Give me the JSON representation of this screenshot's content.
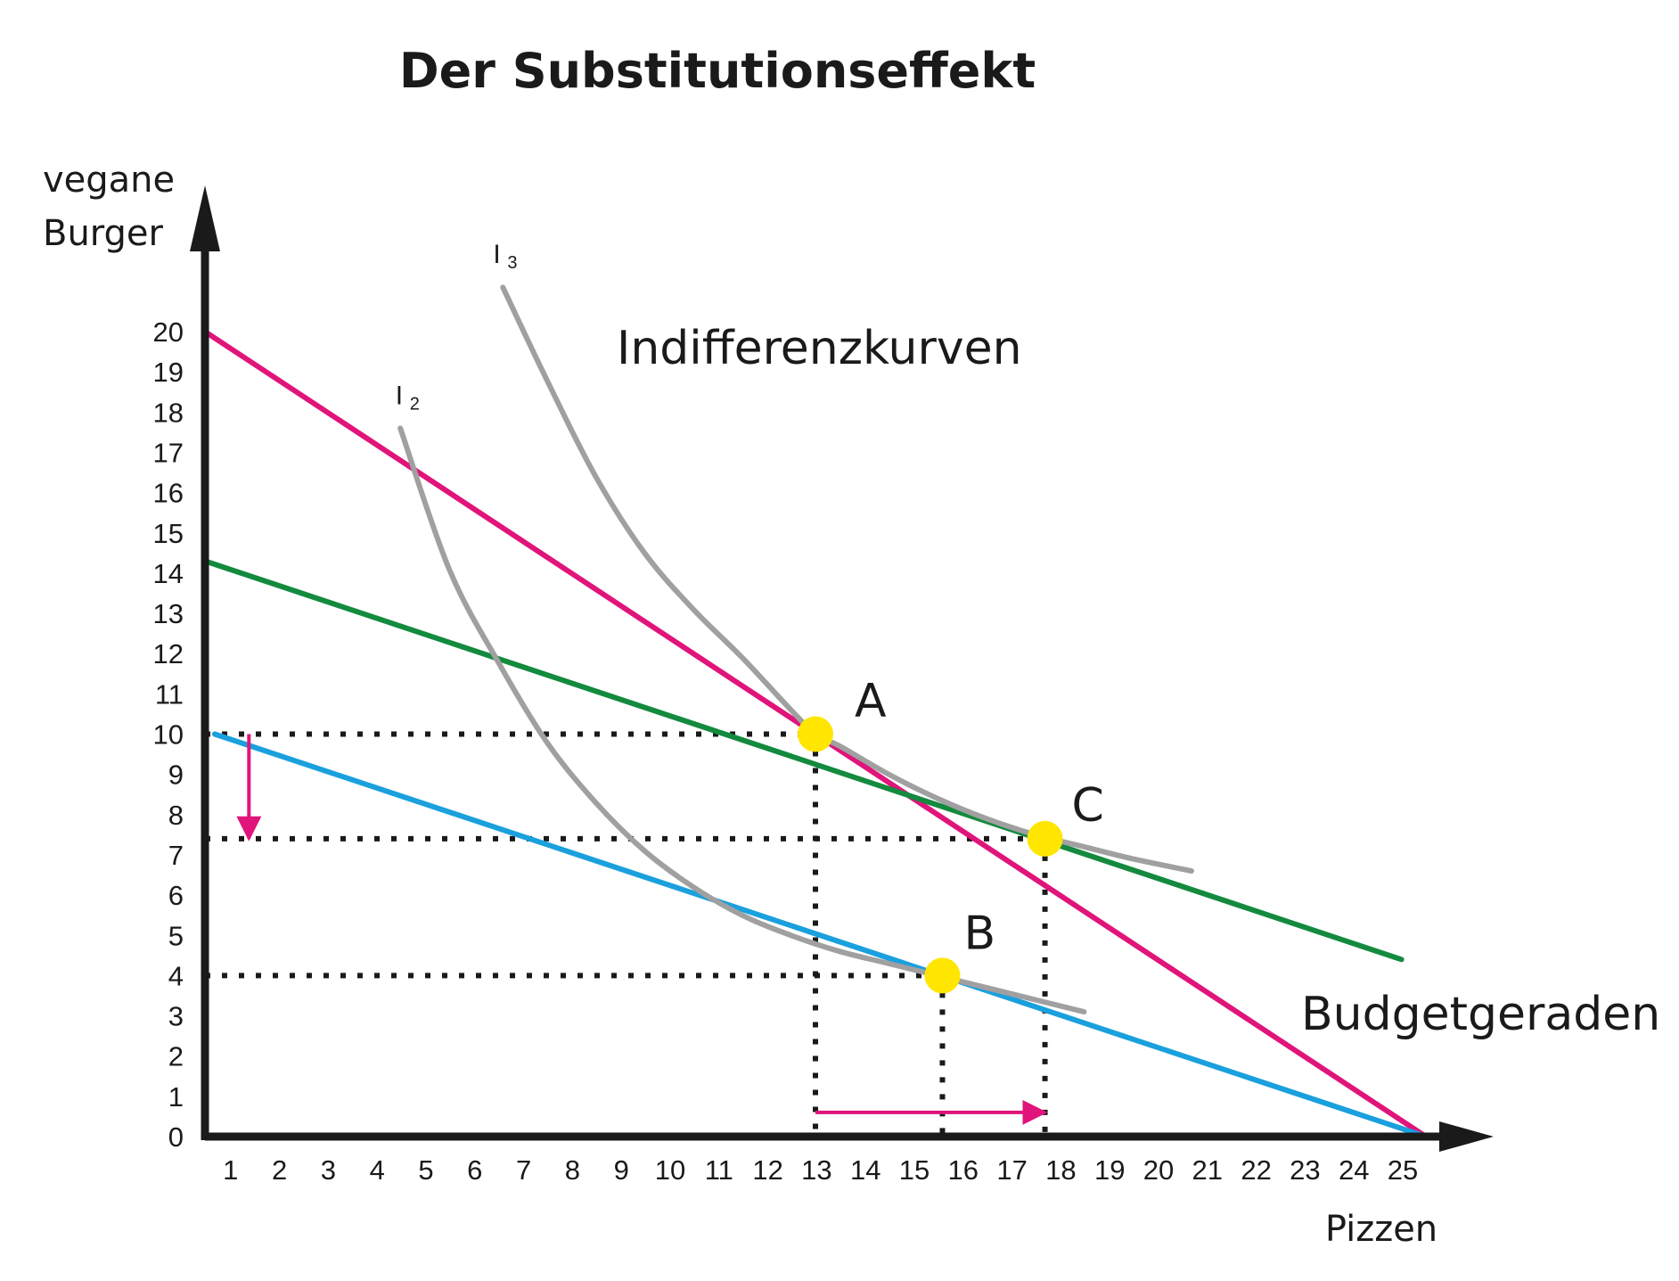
{
  "chart_data": {
    "type": "line",
    "title": "Der Substitutionseffekt",
    "ylabel": [
      "vegane",
      "Burger"
    ],
    "xlabel": "Pizzen",
    "xlim": [
      0,
      25
    ],
    "ylim": [
      0,
      20
    ],
    "x_ticks": [
      1,
      2,
      3,
      4,
      5,
      6,
      7,
      8,
      9,
      10,
      11,
      12,
      13,
      14,
      15,
      16,
      17,
      18,
      19,
      20,
      21,
      22,
      23,
      24,
      25
    ],
    "y_ticks": [
      0,
      1,
      2,
      3,
      4,
      5,
      6,
      7,
      8,
      9,
      10,
      11,
      12,
      13,
      14,
      15,
      16,
      17,
      18,
      19,
      20
    ],
    "budget_label": "Budgetgeraden",
    "indifference_label": "Indifferenzkurven",
    "colors": {
      "pink": "#e0147a",
      "green": "#138a3e",
      "blue": "#1aa0dd",
      "gray": "#a0a0a0",
      "point": "#ffe600",
      "axis": "#1a1a1a"
    },
    "budget_lines": [
      {
        "color": "pink",
        "points": [
          [
            0,
            20
          ],
          [
            25,
            0
          ]
        ]
      },
      {
        "color": "green",
        "points": [
          [
            0,
            14.3
          ],
          [
            24.5,
            4.4
          ]
        ]
      },
      {
        "color": "blue",
        "points": [
          [
            0.2,
            10
          ],
          [
            25,
            0
          ]
        ]
      }
    ],
    "indifference_curves": [
      {
        "label": "I",
        "sub": "2",
        "points": [
          [
            4,
            17.6
          ],
          [
            5,
            14.1
          ],
          [
            6,
            11.8
          ],
          [
            7,
            9.8
          ],
          [
            8,
            8.3
          ],
          [
            9,
            7.1
          ],
          [
            10,
            6.2
          ],
          [
            11,
            5.5
          ],
          [
            12,
            5.0
          ],
          [
            13,
            4.6
          ],
          [
            14,
            4.3
          ],
          [
            15,
            4.0
          ],
          [
            16,
            3.7
          ],
          [
            17,
            3.4
          ],
          [
            18,
            3.1
          ]
        ],
        "label_at": [
          3.9,
          18.2
        ]
      },
      {
        "label": "I",
        "sub": "3",
        "points": [
          [
            6.1,
            21.1
          ],
          [
            7,
            18.8
          ],
          [
            8,
            16.4
          ],
          [
            9,
            14.5
          ],
          [
            10,
            13.1
          ],
          [
            11,
            11.9
          ],
          [
            12,
            10.6
          ],
          [
            12.5,
            10.0
          ],
          [
            13,
            9.7
          ],
          [
            14,
            9.0
          ],
          [
            15,
            8.4
          ],
          [
            16,
            7.9
          ],
          [
            17,
            7.5
          ],
          [
            18,
            7.2
          ],
          [
            19,
            6.9
          ],
          [
            20.2,
            6.6
          ]
        ],
        "label_at": [
          5.9,
          21.7
        ]
      }
    ],
    "points": [
      {
        "label": "A",
        "x": 12.5,
        "y": 10
      },
      {
        "label": "C",
        "x": 17.2,
        "y": 7.4
      },
      {
        "label": "B",
        "x": 15.1,
        "y": 4
      }
    ],
    "guide_lines": [
      {
        "from": [
          0,
          10
        ],
        "to": [
          12.5,
          10
        ]
      },
      {
        "from": [
          0,
          7.4
        ],
        "to": [
          17.2,
          7.4
        ]
      },
      {
        "from": [
          0,
          4
        ],
        "to": [
          15.1,
          4
        ]
      },
      {
        "from": [
          12.5,
          10
        ],
        "to": [
          12.5,
          0
        ]
      },
      {
        "from": [
          17.2,
          7.4
        ],
        "to": [
          17.2,
          0
        ]
      },
      {
        "from": [
          15.1,
          4
        ],
        "to": [
          15.1,
          0
        ]
      }
    ],
    "arrows": [
      {
        "color": "pink",
        "from": [
          0.9,
          10
        ],
        "to": [
          0.9,
          7.4
        ]
      },
      {
        "color": "pink",
        "from": [
          12.5,
          0.6
        ],
        "to": [
          17.2,
          0.6
        ]
      }
    ]
  }
}
